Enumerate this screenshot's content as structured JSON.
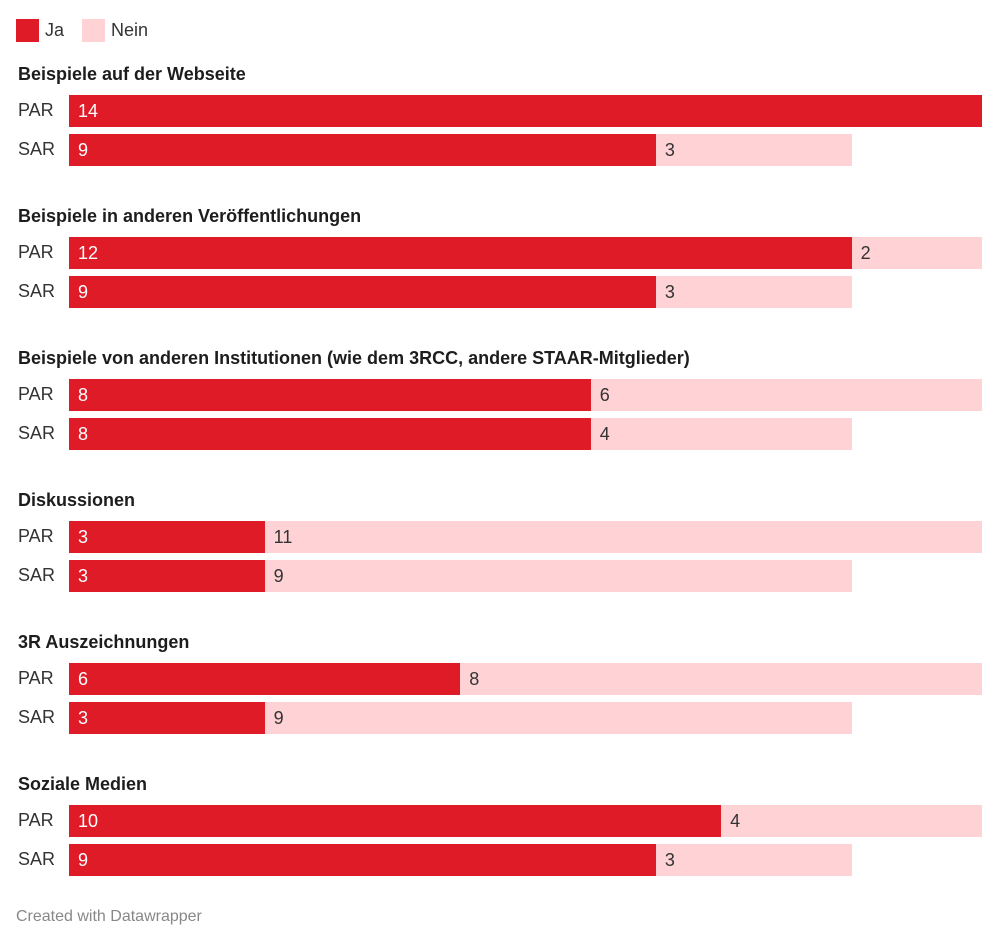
{
  "chart_data": {
    "type": "bar",
    "stacked": true,
    "orientation": "horizontal",
    "legend": {
      "position": "top-left",
      "entries": [
        {
          "name": "Ja",
          "color": "#e01b28"
        },
        {
          "name": "Nein",
          "color": "#ffd2d6"
        }
      ]
    },
    "xlim": [
      0,
      14
    ],
    "groups": [
      {
        "title": "Beispiele auf der Webseite",
        "rows": [
          {
            "label": "PAR",
            "Ja": 14,
            "Nein": 0
          },
          {
            "label": "SAR",
            "Ja": 9,
            "Nein": 3
          }
        ]
      },
      {
        "title": "Beispiele in anderen Veröffentlichungen",
        "rows": [
          {
            "label": "PAR",
            "Ja": 12,
            "Nein": 2
          },
          {
            "label": "SAR",
            "Ja": 9,
            "Nein": 3
          }
        ]
      },
      {
        "title": "Beispiele von anderen Institutionen (wie dem 3RCC, andere STAAR-Mitglieder)",
        "rows": [
          {
            "label": "PAR",
            "Ja": 8,
            "Nein": 6
          },
          {
            "label": "SAR",
            "Ja": 8,
            "Nein": 4
          }
        ]
      },
      {
        "title": "Diskussionen",
        "rows": [
          {
            "label": "PAR",
            "Ja": 3,
            "Nein": 11
          },
          {
            "label": "SAR",
            "Ja": 3,
            "Nein": 9
          }
        ]
      },
      {
        "title": "3R Auszeichnungen",
        "rows": [
          {
            "label": "PAR",
            "Ja": 6,
            "Nein": 8
          },
          {
            "label": "SAR",
            "Ja": 3,
            "Nein": 9
          }
        ]
      },
      {
        "title": "Soziale Medien",
        "rows": [
          {
            "label": "PAR",
            "Ja": 10,
            "Nein": 4
          },
          {
            "label": "SAR",
            "Ja": 9,
            "Nein": 3
          }
        ]
      }
    ]
  },
  "footer": "Created with Datawrapper"
}
